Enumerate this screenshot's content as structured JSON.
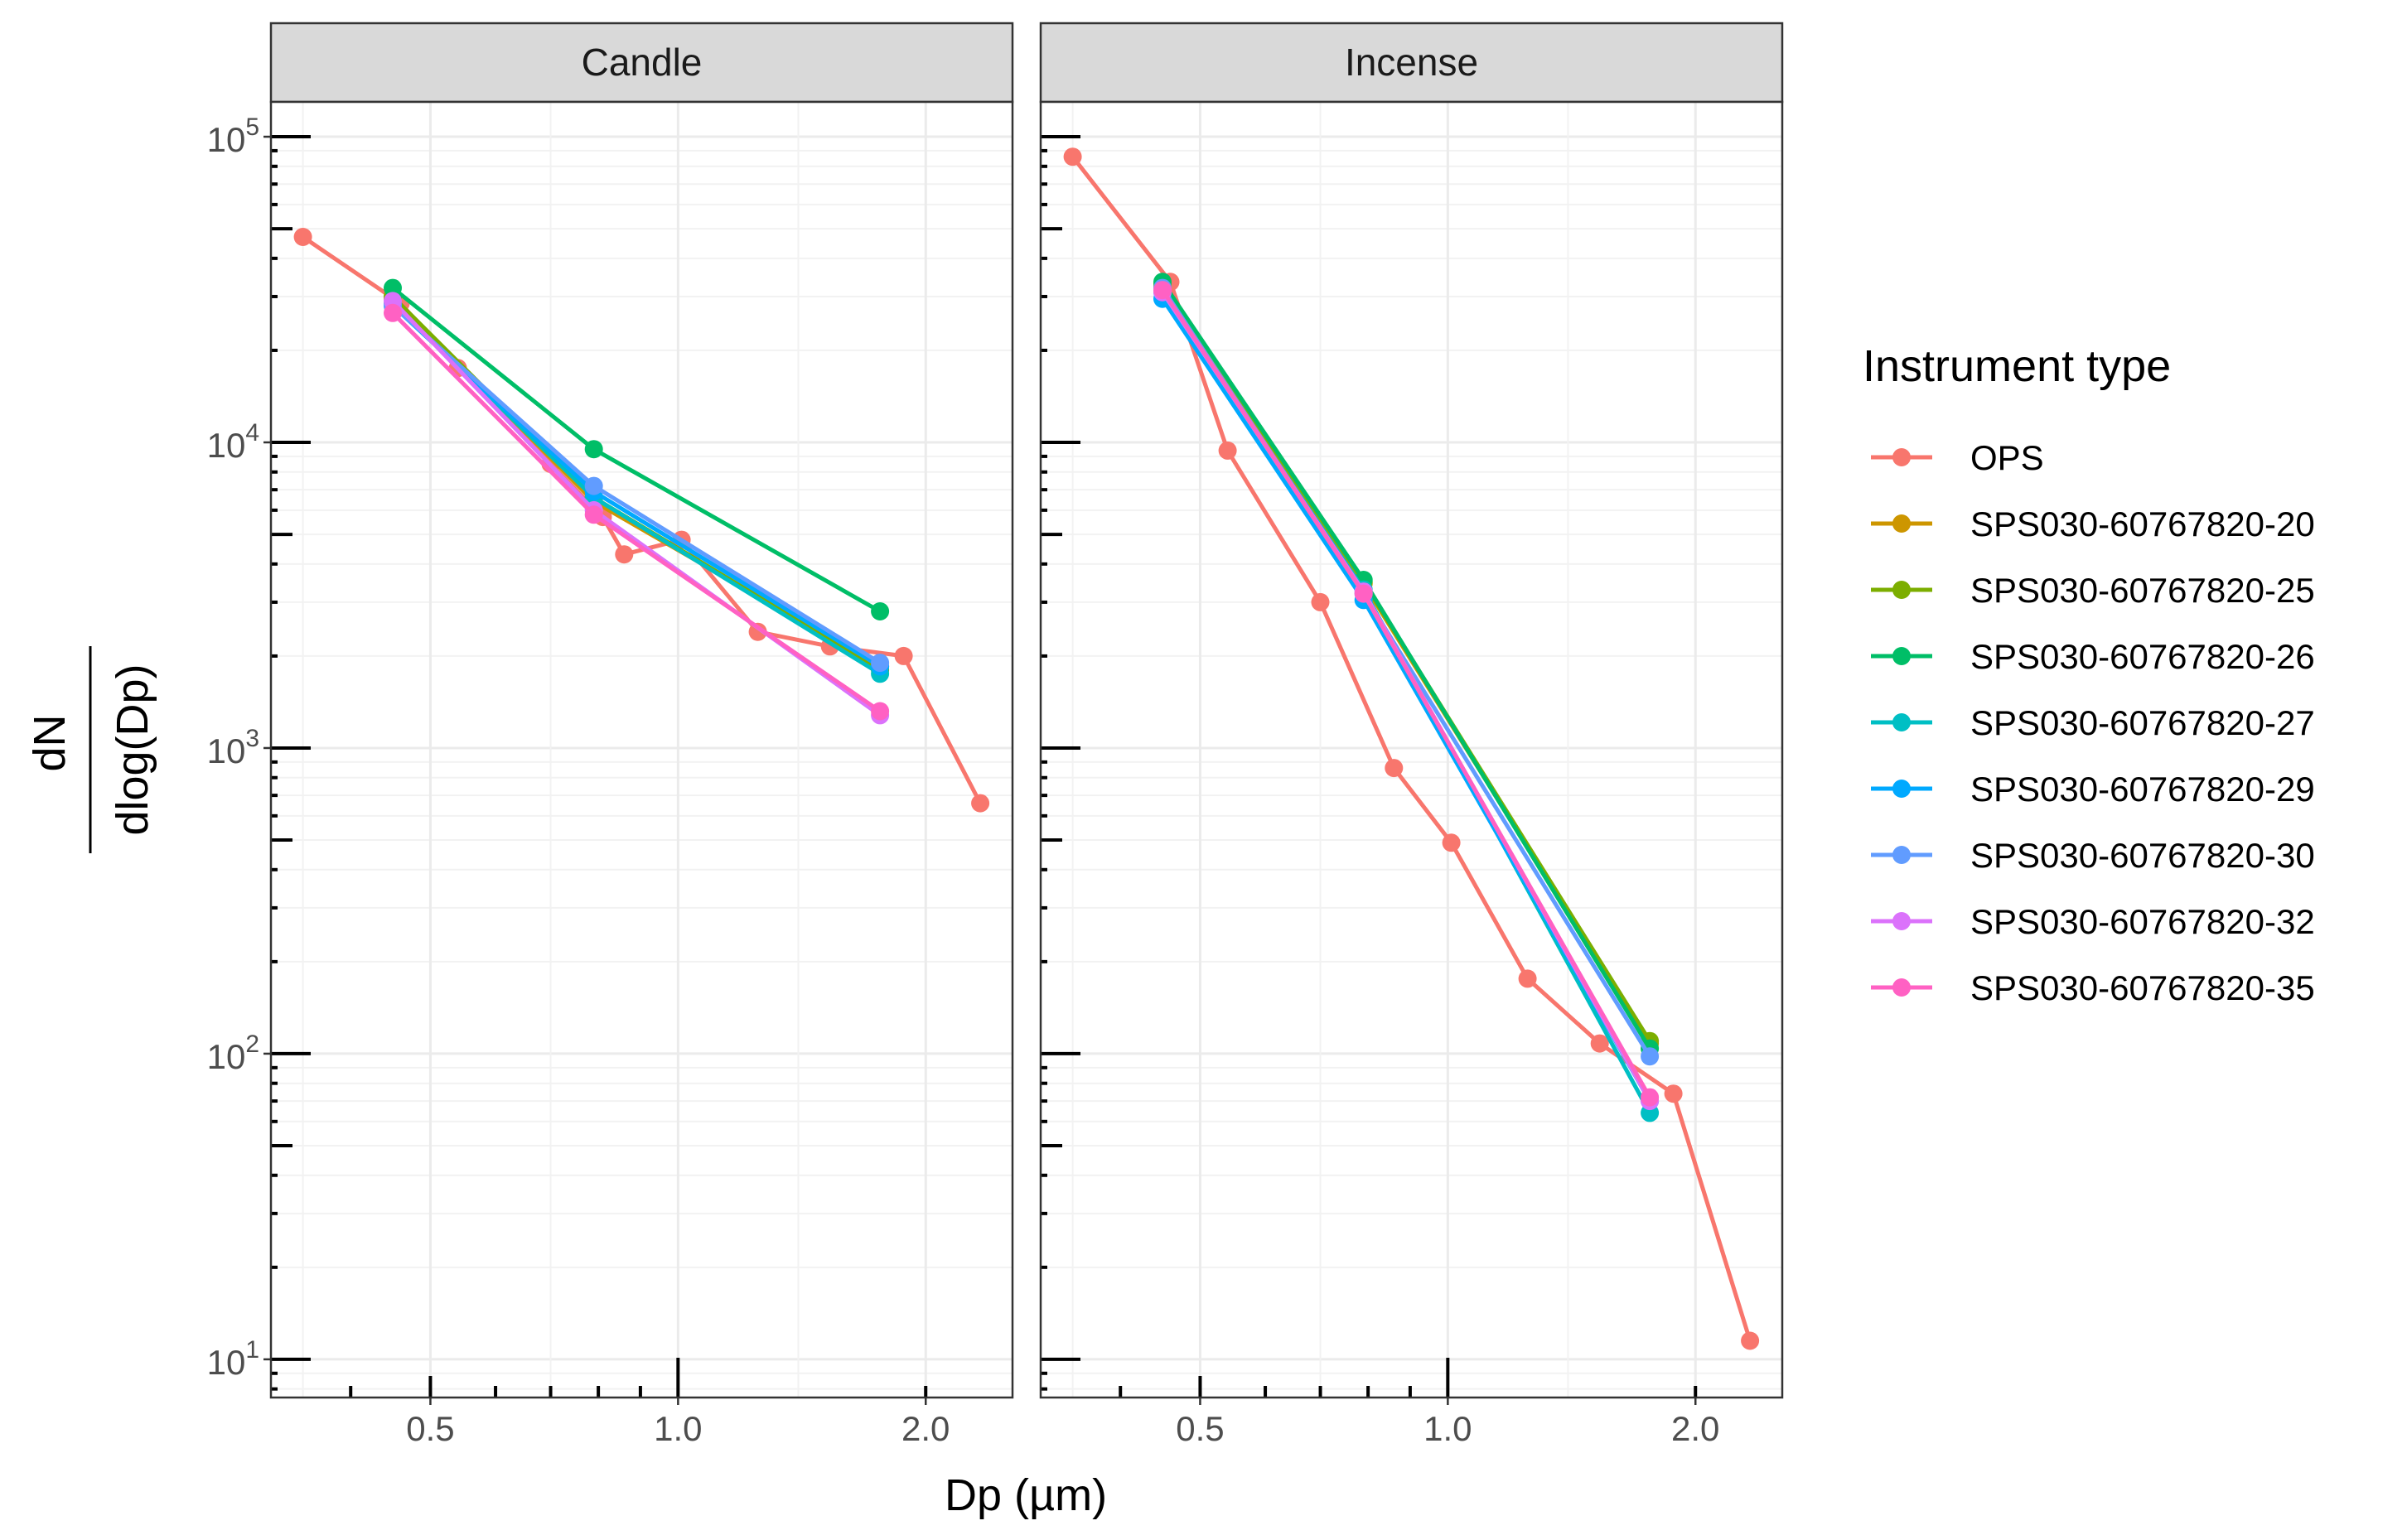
{
  "chart_data": {
    "type": "line",
    "facets": [
      "Candle",
      "Incense"
    ],
    "xlabel": "Dp (µm)",
    "ylabel_numerator": "dN",
    "ylabel_denominator": "dlog(Dp)",
    "x_scale": "log10",
    "y_scale": "log10",
    "xlim": [
      0.32,
      2.55
    ],
    "ylim": [
      7.5,
      130000
    ],
    "x_ticks": [
      {
        "value": 0.5,
        "label": "0.5"
      },
      {
        "value": 1.0,
        "label": "1.0"
      },
      {
        "value": 2.0,
        "label": "2.0"
      }
    ],
    "y_ticks": [
      {
        "value": 10,
        "base": "10",
        "exp": "1"
      },
      {
        "value": 100,
        "base": "10",
        "exp": "2"
      },
      {
        "value": 1000,
        "base": "10",
        "exp": "3"
      },
      {
        "value": 10000,
        "base": "10",
        "exp": "4"
      },
      {
        "value": 100000,
        "base": "10",
        "exp": "5"
      }
    ],
    "legend_title": "Instrument type",
    "legend_position": "right",
    "series": [
      {
        "name": "OPS",
        "color": "#F8766D",
        "panels": {
          "Candle": {
            "x": [
              0.35,
              0.46,
              0.54,
              0.7,
              0.81,
              0.86,
              1.01,
              1.25,
              1.53,
              1.88,
              2.33
            ],
            "y": [
              47000,
              28500,
              17500,
              8500,
              5700,
              4300,
              4800,
              2400,
              2150,
              2000,
              660
            ]
          },
          "Incense": {
            "x": [
              0.35,
              0.46,
              0.54,
              0.7,
              0.86,
              1.01,
              1.25,
              1.53,
              1.88,
              2.33
            ],
            "y": [
              86000,
              33500,
              9400,
              3000,
              860,
              490,
              176,
              108,
              74,
              11.5
            ]
          }
        }
      },
      {
        "name": "SPS030-60767820-20",
        "color": "#CD9600",
        "panels": {
          "Candle": {
            "x": [
              0.45,
              0.79,
              1.76
            ],
            "y": [
              29500,
              6400,
              1850
            ]
          },
          "Incense": {
            "x": [
              0.45,
              0.79,
              1.76
            ],
            "y": [
              32500,
              3450,
              108
            ]
          }
        }
      },
      {
        "name": "SPS030-60767820-25",
        "color": "#7CAE00",
        "panels": {
          "Candle": {
            "x": [
              0.45,
              0.79,
              1.76
            ],
            "y": [
              30000,
              6600,
              1800
            ]
          },
          "Incense": {
            "x": [
              0.45,
              0.79,
              1.76
            ],
            "y": [
              33000,
              3500,
              110
            ]
          }
        }
      },
      {
        "name": "SPS030-60767820-26",
        "color": "#00BE67",
        "panels": {
          "Candle": {
            "x": [
              0.45,
              0.79,
              1.76
            ],
            "y": [
              32000,
              9500,
              2800
            ]
          },
          "Incense": {
            "x": [
              0.45,
              0.79,
              1.76
            ],
            "y": [
              33500,
              3550,
              104
            ]
          }
        }
      },
      {
        "name": "SPS030-60767820-27",
        "color": "#00BFC4",
        "panels": {
          "Candle": {
            "x": [
              0.45,
              0.79,
              1.76
            ],
            "y": [
              28500,
              6600,
              1750
            ]
          },
          "Incense": {
            "x": [
              0.45,
              0.79,
              1.76
            ],
            "y": [
              31000,
              3300,
              64
            ]
          }
        }
      },
      {
        "name": "SPS030-60767820-29",
        "color": "#00A9FF",
        "panels": {
          "Candle": {
            "x": [
              0.45,
              0.79,
              1.76
            ],
            "y": [
              28000,
              6900,
              1850
            ]
          },
          "Incense": {
            "x": [
              0.45,
              0.79,
              1.76
            ],
            "y": [
              29500,
              3050,
              70
            ]
          }
        }
      },
      {
        "name": "SPS030-60767820-30",
        "color": "#619CFF",
        "panels": {
          "Candle": {
            "x": [
              0.45,
              0.79,
              1.76
            ],
            "y": [
              28000,
              7200,
              1900
            ]
          },
          "Incense": {
            "x": [
              0.45,
              0.79,
              1.76
            ],
            "y": [
              32000,
              3200,
              98
            ]
          }
        }
      },
      {
        "name": "SPS030-60767820-32",
        "color": "#DB72FB",
        "panels": {
          "Candle": {
            "x": [
              0.45,
              0.79,
              1.76
            ],
            "y": [
              29000,
              6000,
              1280
            ]
          },
          "Incense": {
            "x": [
              0.45,
              0.79,
              1.76
            ],
            "y": [
              31000,
              3250,
              70
            ]
          }
        }
      },
      {
        "name": "SPS030-60767820-35",
        "color": "#FF61C3",
        "panels": {
          "Candle": {
            "x": [
              0.45,
              0.79,
              1.76
            ],
            "y": [
              26500,
              5800,
              1320
            ]
          },
          "Incense": {
            "x": [
              0.45,
              0.79,
              1.76
            ],
            "y": [
              31500,
              3200,
              72
            ]
          }
        }
      }
    ]
  }
}
